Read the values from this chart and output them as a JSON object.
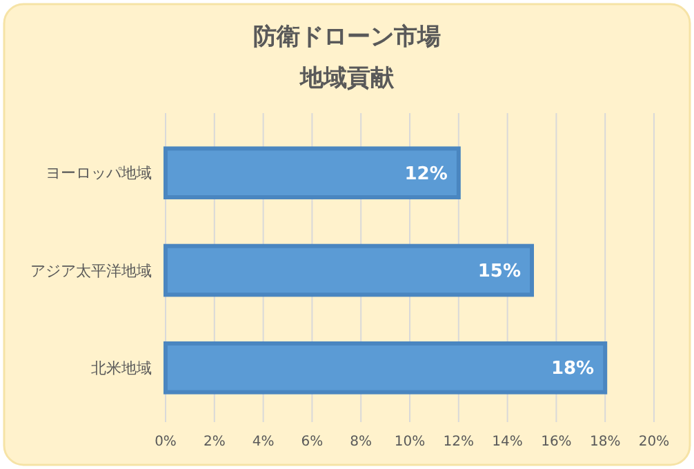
{
  "chart_data": {
    "type": "bar",
    "orientation": "horizontal",
    "title": "防衛ドローン市場",
    "subtitle": "地域貢献",
    "categories": [
      "ヨーロッパ地域",
      "アジア太平洋地域",
      "北米地域"
    ],
    "values": [
      12,
      15,
      18
    ],
    "color": "#5b9bd5",
    "value_labels": [
      "12%",
      "15%",
      "18%"
    ],
    "xlim": [
      0,
      20
    ],
    "xticks": [
      {
        "value": 0,
        "label": "0%"
      },
      {
        "value": 2,
        "label": "2%"
      },
      {
        "value": 4,
        "label": "4%"
      },
      {
        "value": 6,
        "label": "6%"
      },
      {
        "value": 8,
        "label": "8%"
      },
      {
        "value": 10,
        "label": "10%"
      },
      {
        "value": 12,
        "label": "12%"
      },
      {
        "value": 14,
        "label": "14%"
      },
      {
        "value": 16,
        "label": "16%"
      },
      {
        "value": 18,
        "label": "18%"
      },
      {
        "value": 20,
        "label": "20%"
      }
    ],
    "grid": "x"
  }
}
